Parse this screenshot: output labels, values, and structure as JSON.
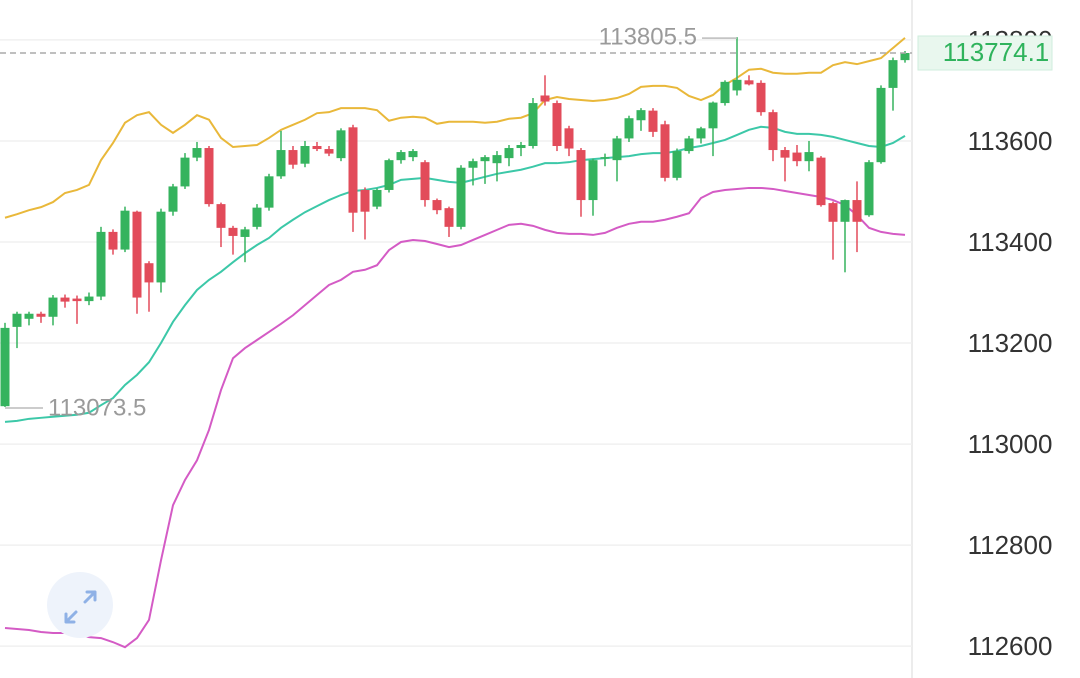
{
  "chart_data": {
    "type": "candlestick",
    "ylim": [
      112537,
      113879
    ],
    "yticks": [
      112600,
      112800,
      113000,
      113200,
      113400,
      113600,
      113800
    ],
    "grid": true,
    "up_color": "#35b35e",
    "down_color": "#e24b5a",
    "last_price_color": "#2fb35c",
    "open": [
      113075,
      113232,
      113248,
      113258,
      113252,
      113290,
      113288,
      113283,
      113292,
      113420,
      113385,
      113460,
      113358,
      113320,
      113460,
      113510,
      113567,
      113586,
      113475,
      113428,
      113410,
      113430,
      113468,
      113530,
      113582,
      113555,
      113590,
      113584,
      113566,
      113627,
      113503,
      113470,
      113503,
      113562,
      113568,
      113558,
      113483,
      113467,
      113430,
      113547,
      113560,
      113556,
      113566,
      113586,
      113590,
      113690,
      113675,
      113625,
      113582,
      113483,
      113565,
      113562,
      113605,
      113641,
      113660,
      113633,
      113527,
      113580,
      113605,
      113625,
      113675,
      113700,
      113720,
      113715,
      113657,
      113582,
      113577,
      113560,
      113567,
      113477,
      113440,
      113483,
      113453,
      113558,
      113705,
      113760
    ],
    "high": [
      113240,
      113262,
      113262,
      113262,
      113295,
      113296,
      113294,
      113300,
      113430,
      113425,
      113470,
      113462,
      113362,
      113466,
      113515,
      113576,
      113598,
      113590,
      113478,
      113432,
      113430,
      113475,
      113535,
      113620,
      113590,
      113600,
      113598,
      113590,
      113625,
      113632,
      113508,
      113506,
      113565,
      113582,
      113584,
      113562,
      113486,
      113470,
      113552,
      113565,
      113572,
      113580,
      113592,
      113598,
      113685,
      113730,
      113680,
      113630,
      113586,
      113565,
      113575,
      113610,
      113650,
      113665,
      113665,
      113640,
      113585,
      113610,
      113628,
      113678,
      113720,
      113805.5,
      113730,
      113720,
      113662,
      113588,
      113592,
      113600,
      113570,
      113480,
      113484,
      113520,
      113562,
      113710,
      113765,
      113778
    ],
    "low": [
      113073.5,
      113190,
      113235,
      113240,
      113235,
      113270,
      113238,
      113275,
      113285,
      113375,
      113380,
      113258,
      113262,
      113300,
      113452,
      113505,
      113560,
      113470,
      113390,
      113375,
      113360,
      113425,
      113462,
      113525,
      113545,
      113548,
      113580,
      113570,
      113560,
      113420,
      113405,
      113465,
      113498,
      113555,
      113560,
      113470,
      113455,
      113410,
      113425,
      113512,
      113515,
      113520,
      113550,
      113570,
      113585,
      113670,
      113580,
      113570,
      113450,
      113452,
      113550,
      113520,
      113598,
      113620,
      113608,
      113520,
      113522,
      113575,
      113595,
      113570,
      113670,
      113690,
      113710,
      113650,
      113560,
      113520,
      113550,
      113540,
      113470,
      113365,
      113340,
      113380,
      113450,
      113555,
      113660,
      113755
    ],
    "close": [
      113230,
      113258,
      113258,
      113252,
      113290,
      113282,
      113283,
      113292,
      113420,
      113385,
      113462,
      113290,
      113320,
      113460,
      113510,
      113567,
      113586,
      113475,
      113428,
      113412,
      113425,
      113468,
      113530,
      113582,
      113553,
      113590,
      113584,
      113575,
      113621,
      113458,
      113460,
      113503,
      113562,
      113578,
      113580,
      113483,
      113463,
      113430,
      113547,
      113560,
      113568,
      113572,
      113586,
      113592,
      113675,
      113678,
      113590,
      113585,
      113483,
      113562,
      113568,
      113605,
      113645,
      113661,
      113618,
      113527,
      113580,
      113605,
      113625,
      113676,
      113717,
      113721,
      113712,
      113657,
      113582,
      113567,
      113560,
      113578,
      113473,
      113440,
      113483,
      113440,
      113558,
      113705,
      113760,
      113774.1
    ],
    "overlays": [
      {
        "color": "#e9b83a",
        "values": [
          113448,
          113455,
          113463,
          113469,
          113479,
          113497,
          113503,
          113513,
          113562,
          113596,
          113636,
          113651,
          113657,
          113632,
          113616,
          113632,
          113651,
          113642,
          113606,
          113588,
          113590,
          113592,
          113606,
          113622,
          113632,
          113642,
          113655,
          113657,
          113665,
          113665,
          113665,
          113661,
          113640,
          113646,
          113648,
          113646,
          113634,
          113638,
          113638,
          113638,
          113636,
          113638,
          113644,
          113646,
          113655,
          113681,
          113687,
          113683,
          113681,
          113679,
          113681,
          113685,
          113693,
          113707,
          113709,
          113709,
          113705,
          113689,
          113681,
          113691,
          113711,
          113725,
          113741,
          113743,
          113735,
          113733,
          113733,
          113735,
          113735,
          113750,
          113756,
          113752,
          113758,
          113764,
          113784,
          113804
        ]
      },
      {
        "color": "#3cc8a8",
        "values": [
          113044,
          113046,
          113050,
          113052,
          113054,
          113056,
          113058,
          113062,
          113077,
          113091,
          113117,
          113137,
          113162,
          113200,
          113242,
          113275,
          113305,
          113325,
          113341,
          113360,
          113378,
          113394,
          113408,
          113428,
          113444,
          113459,
          113471,
          113483,
          113493,
          113501,
          113503,
          113507,
          113513,
          113523,
          113525,
          113527,
          113523,
          113519,
          113517,
          113523,
          113529,
          113535,
          113539,
          113543,
          113549,
          113556,
          113556,
          113558,
          113562,
          113564,
          113566,
          113568,
          113570,
          113574,
          113576,
          113576,
          113580,
          113586,
          113590,
          113596,
          113602,
          113612,
          113622,
          113628,
          113626,
          113618,
          113614,
          113614,
          113612,
          113608,
          113602,
          113596,
          113590,
          113588,
          113596,
          113610
        ]
      },
      {
        "color": "#d45bc5",
        "values": [
          112636,
          112634,
          112632,
          112628,
          112626,
          112626,
          112624,
          112618,
          112616,
          112608,
          112598,
          112616,
          112652,
          112770,
          112879,
          112929,
          112968,
          113028,
          113107,
          113170,
          113190,
          113206,
          113222,
          113238,
          113255,
          113275,
          113295,
          113315,
          113325,
          113341,
          113345,
          113354,
          113384,
          113400,
          113404,
          113402,
          113396,
          113390,
          113394,
          113404,
          113414,
          113424,
          113434,
          113436,
          113432,
          113424,
          113418,
          113416,
          113416,
          113414,
          113418,
          113428,
          113436,
          113440,
          113440,
          113444,
          113450,
          113457,
          113487,
          113499,
          113503,
          113505,
          113507,
          113507,
          113505,
          113501,
          113497,
          113493,
          113489,
          113483,
          113473,
          113453,
          113428,
          113420,
          113416,
          113414
        ]
      }
    ]
  }
}
